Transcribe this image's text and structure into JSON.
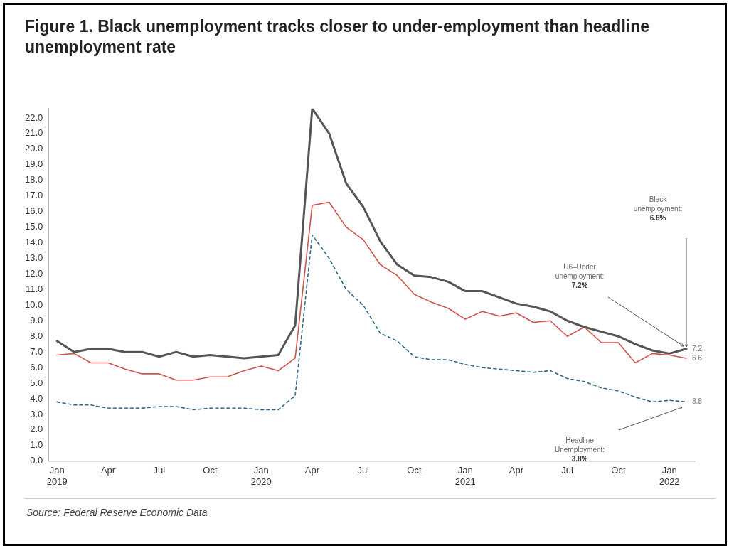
{
  "chart_data": {
    "type": "line",
    "title": "Figure 1. Black unemployment tracks closer to under-employment than headline unemployment rate",
    "categories": [
      "Jan\n2019",
      null,
      null,
      "Apr",
      null,
      null,
      "Jul",
      null,
      null,
      "Oct",
      null,
      null,
      "Jan\n2020",
      null,
      null,
      "Apr",
      null,
      null,
      "Jul",
      null,
      null,
      "Oct",
      null,
      null,
      "Jan\n2021",
      null,
      null,
      "Apr",
      null,
      null,
      "Jul",
      null,
      null,
      "Oct",
      null,
      null,
      "Jan\n2022",
      null
    ],
    "series": [
      {
        "color": "#555555",
        "line_style": "solid",
        "values": [
          7.7,
          7.0,
          7.2,
          7.2,
          7.0,
          7.0,
          6.7,
          7.0,
          6.7,
          6.8,
          6.7,
          6.6,
          6.7,
          6.8,
          8.7,
          22.6,
          21.0,
          17.8,
          16.3,
          14.1,
          12.6,
          11.9,
          11.8,
          11.5,
          10.9,
          10.9,
          10.5,
          10.1,
          9.9,
          9.6,
          9.0,
          8.6,
          8.3,
          8.0,
          7.5,
          7.1,
          6.9,
          7.2
        ],
        "value_labels": [
          null,
          null,
          null,
          null,
          null,
          null,
          null,
          null,
          null,
          null,
          null,
          null,
          null,
          null,
          null,
          null,
          null,
          null,
          null,
          null,
          null,
          null,
          null,
          null,
          null,
          null,
          null,
          null,
          null,
          null,
          null,
          null,
          null,
          null,
          null,
          null,
          null,
          "7.2"
        ]
      },
      {
        "color": "#d0544c",
        "line_style": "solid",
        "values": [
          6.8,
          6.9,
          6.3,
          6.3,
          5.9,
          5.6,
          5.6,
          5.2,
          5.2,
          5.4,
          5.4,
          5.8,
          6.1,
          5.8,
          6.6,
          16.4,
          16.6,
          15.0,
          14.2,
          12.6,
          11.9,
          10.7,
          10.2,
          9.8,
          9.1,
          9.6,
          9.3,
          9.5,
          8.9,
          9.0,
          8.0,
          8.6,
          7.6,
          7.6,
          6.3,
          6.9,
          6.8,
          6.6
        ],
        "value_labels": [
          null,
          null,
          null,
          null,
          null,
          null,
          null,
          null,
          null,
          null,
          null,
          null,
          null,
          null,
          null,
          null,
          null,
          null,
          null,
          null,
          null,
          null,
          null,
          null,
          null,
          null,
          null,
          null,
          null,
          null,
          null,
          null,
          null,
          null,
          null,
          null,
          null,
          "6.6"
        ]
      },
      {
        "color": "#2e6a8a",
        "line_style": "dashed",
        "values": [
          3.8,
          3.6,
          3.6,
          3.4,
          3.4,
          3.4,
          3.5,
          3.5,
          3.3,
          3.4,
          3.4,
          3.4,
          3.3,
          3.3,
          4.2,
          14.5,
          13.0,
          11.0,
          10.0,
          8.2,
          7.7,
          6.7,
          6.5,
          6.5,
          6.2,
          6.0,
          5.9,
          5.8,
          5.7,
          5.8,
          5.3,
          5.1,
          4.7,
          4.5,
          4.1,
          3.8,
          3.9,
          3.8
        ],
        "value_labels": [
          null,
          null,
          null,
          null,
          null,
          null,
          null,
          null,
          null,
          null,
          null,
          null,
          null,
          null,
          null,
          null,
          null,
          null,
          null,
          null,
          null,
          null,
          null,
          null,
          null,
          null,
          null,
          null,
          null,
          null,
          null,
          null,
          null,
          null,
          null,
          null,
          null,
          "3.8"
        ]
      }
    ],
    "ylim": [
      0,
      22.6
    ],
    "yticks": [
      {
        "value": 0,
        "label": "0.0"
      },
      {
        "value": 1,
        "label": "1.0"
      },
      {
        "value": 2,
        "label": "2.0"
      },
      {
        "value": 3,
        "label": "3.0"
      },
      {
        "value": 4,
        "label": "4.0"
      },
      {
        "value": 5,
        "label": "5.0"
      },
      {
        "value": 6,
        "label": "6.0"
      },
      {
        "value": 7,
        "label": "7.0"
      },
      {
        "value": 8,
        "label": "8.0"
      },
      {
        "value": 9,
        "label": "9.0"
      },
      {
        "value": 10,
        "label": "10.0"
      },
      {
        "value": 11,
        "label": "11.0"
      },
      {
        "value": 12,
        "label": "12.0"
      },
      {
        "value": 13,
        "label": "13.0"
      },
      {
        "value": 14,
        "label": "14.0"
      },
      {
        "value": 15,
        "label": "15.0"
      },
      {
        "value": 16,
        "label": "16.0"
      },
      {
        "value": 17,
        "label": "17.0"
      },
      {
        "value": 18,
        "label": "18.0"
      },
      {
        "value": 19,
        "label": "19.0"
      },
      {
        "value": 20,
        "label": "20.0"
      },
      {
        "value": 21,
        "label": "21.0"
      },
      {
        "value": 22,
        "label": "22.0"
      }
    ],
    "grid": false,
    "legend": false,
    "annotations": [
      "Black\nunemployment:\n6.6%",
      "U6–Under\nunemployment:\n7.2%",
      "Headline\nUnemployment:\n3.8%",
      "Source: Federal Reserve Economic Data"
    ]
  }
}
